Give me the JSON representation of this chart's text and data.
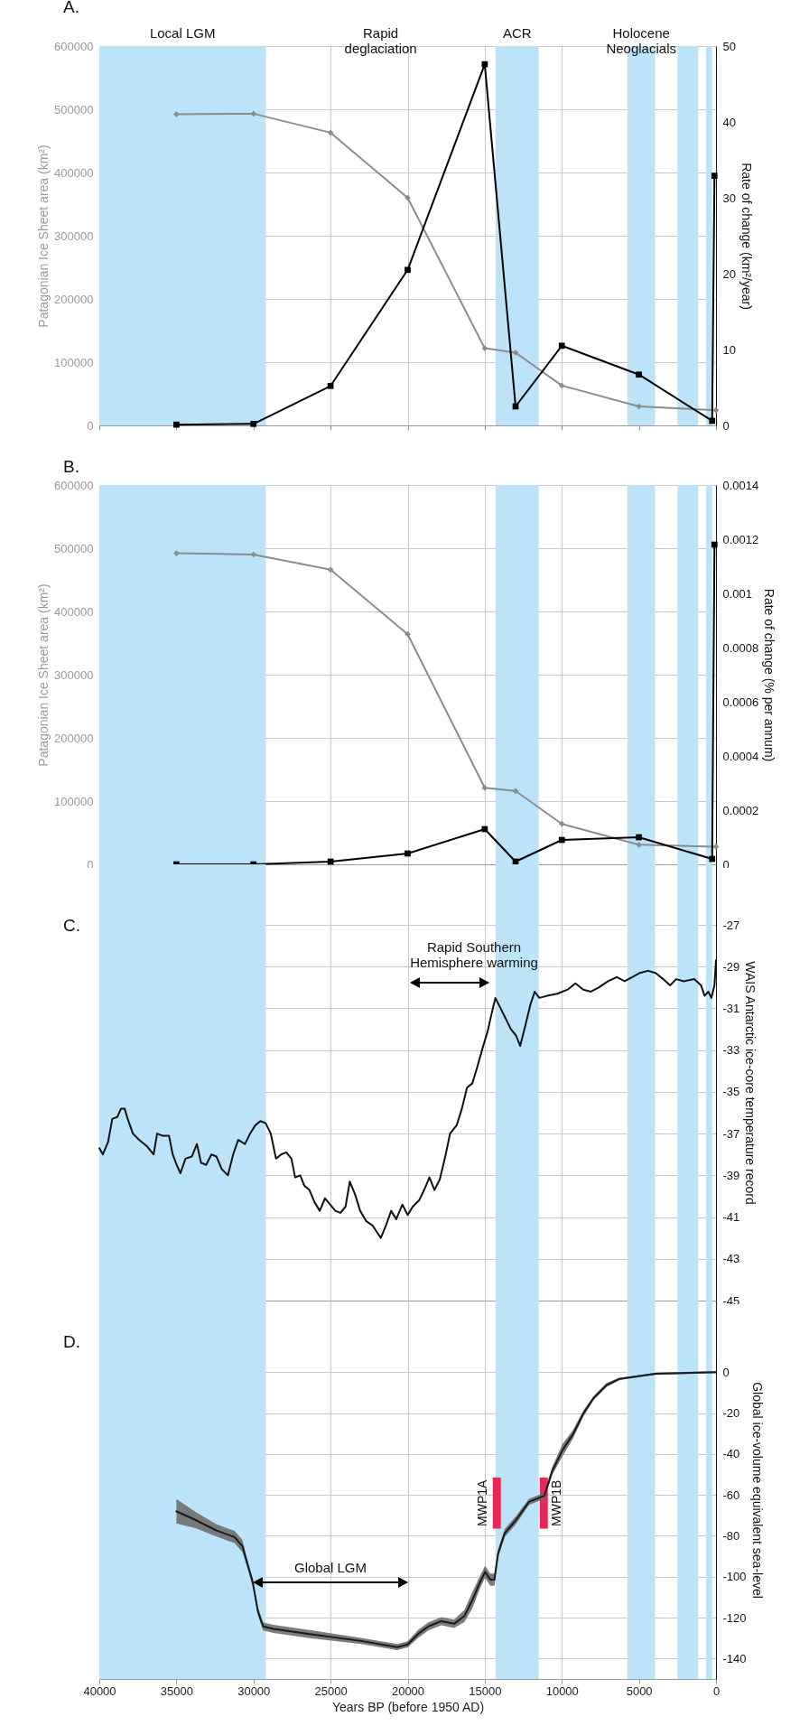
{
  "chart_data": [
    {
      "type": "line",
      "title": "A.",
      "ylabel": "Patagonian Ice Sheet area (km²)",
      "y2label": "Rate of change (km²/year)",
      "annotations": [
        "Rapid deglaciation"
      ],
      "xlim": [
        40000,
        0
      ],
      "xticks": [
        40000,
        35000,
        30000,
        25000,
        20000,
        15000,
        10000,
        5000,
        0
      ],
      "ylim": [
        0,
        600000
      ],
      "yticks": [
        0,
        100000,
        200000,
        300000,
        400000,
        500000,
        600000
      ],
      "y2lim": [
        0,
        50
      ],
      "y2ticks": [
        0,
        10,
        20,
        30,
        40,
        50
      ],
      "grid": true,
      "tick_labels": "y",
      "bands": [
        {
          "axis": "x",
          "from": 40000,
          "to": 29200,
          "label": "Local LGM",
          "color": "#bde3f8"
        },
        {
          "axis": "x",
          "from": 14300,
          "to": 11500,
          "label": "ACR",
          "color": "#bde3f8"
        },
        {
          "axis": "x",
          "from": 5750,
          "to": 3950,
          "label": "Holocene Neoglacials",
          "color": "#bde3f8"
        },
        {
          "axis": "x",
          "from": 2500,
          "to": 1150,
          "color": "#bde3f8"
        },
        {
          "axis": "x",
          "from": 650,
          "to": 250,
          "color": "#bde3f8"
        }
      ],
      "series": [
        {
          "color": "#8c8c8c",
          "marker": "diamond",
          "x": [
            35000,
            30000,
            25000,
            20000,
            15000,
            13000,
            10000,
            5000,
            0
          ],
          "values": [
            492000,
            493000,
            463000,
            360000,
            122000,
            115000,
            63000,
            30000,
            24000
          ]
        },
        {
          "color": "#000000",
          "marker": "square",
          "axis": "y2",
          "x": [
            35000,
            30000,
            25000,
            20000,
            15000,
            13000,
            10000,
            5000,
            250,
            100
          ],
          "values": [
            0.1,
            0.2,
            5.2,
            20.5,
            47.6,
            2.5,
            10.5,
            6.7,
            0.6,
            32.9
          ]
        }
      ]
    },
    {
      "type": "line",
      "title": "B.",
      "ylabel": "Patagonian Ice Sheet area (km²)",
      "y2label": "Rate of change (% per annum)",
      "xlim": [
        40000,
        0
      ],
      "xticks": [
        40000,
        35000,
        30000,
        25000,
        20000,
        15000,
        10000,
        5000,
        0
      ],
      "ylim": [
        0,
        600000
      ],
      "yticks": [
        0,
        100000,
        200000,
        300000,
        400000,
        500000,
        600000
      ],
      "y2lim": [
        0,
        0.0014
      ],
      "y2ticks": [
        0,
        0.0002,
        0.0004,
        0.0006,
        0.0008,
        0.001,
        0.0012,
        0.0014
      ],
      "grid": true,
      "tick_labels": "y",
      "bands": [
        {
          "axis": "x",
          "from": 40000,
          "to": 29200,
          "color": "#bde3f8"
        },
        {
          "axis": "x",
          "from": 14300,
          "to": 11500,
          "color": "#bde3f8"
        },
        {
          "axis": "x",
          "from": 5750,
          "to": 3950,
          "color": "#bde3f8"
        },
        {
          "axis": "x",
          "from": 2500,
          "to": 1150,
          "color": "#bde3f8"
        },
        {
          "axis": "x",
          "from": 650,
          "to": 250,
          "color": "#bde3f8"
        }
      ],
      "series": [
        {
          "color": "#8c8c8c",
          "marker": "diamond",
          "x": [
            35000,
            30000,
            25000,
            20000,
            15000,
            13000,
            10000,
            5000,
            0
          ],
          "values": [
            492000,
            490000,
            466000,
            364000,
            121000,
            116000,
            64000,
            31000,
            28000
          ]
        },
        {
          "color": "#000000",
          "marker": "square",
          "axis": "y2",
          "x": [
            35000,
            30000,
            25000,
            20000,
            15000,
            13000,
            10000,
            5000,
            250,
            100
          ],
          "values": [
            0,
            0,
            1e-05,
            4e-05,
            0.00013,
            1e-05,
            9e-05,
            0.0001,
            2e-05,
            0.00118
          ]
        }
      ]
    },
    {
      "type": "line",
      "title": "C.",
      "y2label": "WAIS Antarctic ice-core temperature record",
      "annotations": [
        "Rapid Southern Hemisphere warming"
      ],
      "xlim": [
        40000,
        0
      ],
      "xticks": [
        40000,
        35000,
        30000,
        25000,
        20000,
        15000,
        10000,
        5000,
        0
      ],
      "y2lim": [
        -45,
        -24.1
      ],
      "y2ticks": [
        -45,
        -43,
        -41,
        -39,
        -37,
        -35,
        -33,
        -31,
        -29,
        -27
      ],
      "grid": true,
      "tick_labels": "y",
      "bands": [
        {
          "axis": "x",
          "from": 40000,
          "to": 29200,
          "color": "#bde3f8"
        },
        {
          "axis": "x",
          "from": 14300,
          "to": 11500,
          "color": "#bde3f8"
        },
        {
          "axis": "x",
          "from": 5750,
          "to": 3950,
          "color": "#bde3f8"
        },
        {
          "axis": "x",
          "from": 2500,
          "to": 1150,
          "color": "#bde3f8"
        },
        {
          "axis": "x",
          "from": 650,
          "to": 250,
          "color": "#bde3f8"
        }
      ],
      "series": [
        {
          "color": "#111111",
          "axis": "y2",
          "x": [
            40000,
            39770,
            39430,
            39160,
            38830,
            38590,
            38360,
            38160,
            37820,
            37420,
            36920,
            36480,
            36250,
            35920,
            35480,
            35240,
            34980,
            34740,
            34410,
            34000,
            33670,
            33400,
            33070,
            32730,
            32400,
            32060,
            31660,
            31320,
            30990,
            30550,
            30220,
            29880,
            29550,
            29210,
            28880,
            28540,
            28210,
            27870,
            27540,
            27300,
            26970,
            26700,
            26370,
            26030,
            25700,
            25360,
            25030,
            24690,
            24360,
            24030,
            23750,
            23420,
            23080,
            22680,
            22280,
            22010,
            21740,
            21410,
            21070,
            20740,
            20340,
            20000,
            19670,
            19260,
            18930,
            18590,
            18260,
            17920,
            17590,
            17250,
            16820,
            16480,
            16150,
            15810,
            15480,
            15140,
            14810,
            14570,
            14310,
            14040,
            13700,
            13300,
            12970,
            12700,
            12360,
            12030,
            11760,
            11460,
            10960,
            10290,
            9620,
            9120,
            8610,
            8110,
            7610,
            7000,
            6430,
            5930,
            5430,
            4930,
            4420,
            3920,
            3420,
            2980,
            2580,
            2080,
            1410,
            970,
            740,
            500,
            300,
            100,
            0
          ],
          "values": [
            -37.7,
            -38,
            -37.4,
            -36.3,
            -36.2,
            -35.8,
            -35.8,
            -36.3,
            -37,
            -37.3,
            -37.6,
            -38,
            -37,
            -37.1,
            -37.1,
            -38,
            -38.5,
            -38.9,
            -38.2,
            -38.1,
            -37.5,
            -38.4,
            -38.5,
            -38,
            -38.1,
            -38.7,
            -39,
            -38,
            -37.3,
            -37.5,
            -37,
            -36.6,
            -36.4,
            -36.5,
            -37,
            -38.2,
            -38,
            -37.9,
            -38.2,
            -39.1,
            -39,
            -39.5,
            -39.7,
            -40.3,
            -40.7,
            -40.1,
            -40.4,
            -40.7,
            -40.8,
            -40.5,
            -39.3,
            -39.9,
            -40.7,
            -41.2,
            -41.4,
            -41.7,
            -42,
            -41.4,
            -40.7,
            -41.1,
            -40.4,
            -40.9,
            -40.5,
            -40.2,
            -39.7,
            -39.1,
            -39.7,
            -39.2,
            -38.2,
            -37,
            -36.6,
            -35.8,
            -34.8,
            -34.6,
            -33.8,
            -32.9,
            -32.1,
            -31.3,
            -30.5,
            -30.9,
            -31.4,
            -32,
            -32.3,
            -32.8,
            -31.8,
            -30.8,
            -30.2,
            -30.5,
            -30.4,
            -30.3,
            -30.1,
            -29.8,
            -30.1,
            -30.2,
            -30,
            -29.7,
            -29.5,
            -29.7,
            -29.5,
            -29.3,
            -29.2,
            -29.3,
            -29.6,
            -29.9,
            -29.6,
            -29.7,
            -29.6,
            -29.9,
            -30.4,
            -30.2,
            -30.5,
            -29.9,
            -28.7
          ]
        }
      ]
    },
    {
      "type": "line",
      "title": "D.",
      "xlabel": "Years BP (before 1950 AD)",
      "y2label": "Global ice-volume equivalent sea-level",
      "annotations": [
        "Global LGM"
      ],
      "xlim": [
        40000,
        0
      ],
      "xticks": [
        40000,
        35000,
        30000,
        25000,
        20000,
        15000,
        10000,
        5000,
        0
      ],
      "y2lim": [
        -150,
        35
      ],
      "y2ticks": [
        -140,
        -120,
        -100,
        -80,
        -60,
        -40,
        -20,
        0
      ],
      "grid": true,
      "bands": [
        {
          "axis": "x",
          "from": 40000,
          "to": 29200,
          "color": "#bde3f8"
        },
        {
          "axis": "x",
          "from": 14300,
          "to": 11500,
          "color": "#bde3f8"
        },
        {
          "axis": "x",
          "from": 5750,
          "to": 3950,
          "color": "#bde3f8"
        },
        {
          "axis": "x",
          "from": 2500,
          "to": 1150,
          "color": "#bde3f8"
        },
        {
          "axis": "x",
          "from": 650,
          "to": 250,
          "color": "#bde3f8"
        }
      ],
      "series": [
        {
          "color": "#1a1a1a",
          "axis": "y2",
          "x": [
            35000,
            33760,
            32400,
            31230,
            30720,
            30390,
            30050,
            29720,
            29380,
            28710,
            26370,
            23020,
            20680,
            20000,
            19330,
            18660,
            17820,
            16990,
            16320,
            15810,
            15310,
            14980,
            14640,
            14370,
            14140,
            13700,
            12970,
            12130,
            11130,
            10620,
            9950,
            9280,
            8610,
            7940,
            7100,
            6270,
            3920,
            0
          ],
          "values": [
            -68,
            -72.3,
            -77.4,
            -80.6,
            -85,
            -93.8,
            -102.7,
            -116.7,
            -124.3,
            -125.5,
            -128,
            -131.4,
            -134.4,
            -133.1,
            -128,
            -124.3,
            -121.7,
            -123,
            -119.2,
            -111.6,
            -102.7,
            -97.6,
            -101.4,
            -101.4,
            -88.8,
            -78.6,
            -72.3,
            -63.4,
            -60.4,
            -48.2,
            -38,
            -30.4,
            -20.3,
            -12.7,
            -6.3,
            -3.3,
            -0.8,
            0
          ],
          "upper": [
            -62,
            -68.3,
            -74.4,
            -77.6,
            -82,
            -91.8,
            -100.7,
            -114.7,
            -122.3,
            -123.5,
            -126,
            -129.9,
            -132.9,
            -131.6,
            -126,
            -122.3,
            -119.7,
            -121,
            -116.2,
            -107.6,
            -99.7,
            -94.6,
            -98.4,
            -98.4,
            -86.8,
            -76.6,
            -70.3,
            -61.9,
            -58.9,
            -46.2,
            -35,
            -28.4,
            -18.8,
            -11.7,
            -5.3,
            -2.8,
            -0.3,
            0.5
          ],
          "lower": [
            -74,
            -76.3,
            -80.4,
            -83.6,
            -88,
            -95.8,
            -104.7,
            -118.7,
            -126.3,
            -127.5,
            -130,
            -132.9,
            -135.9,
            -134.6,
            -130,
            -126.3,
            -123.7,
            -125,
            -122.2,
            -115.6,
            -105.7,
            -100.6,
            -104.4,
            -104.4,
            -90.8,
            -80.6,
            -74.3,
            -64.9,
            -61.9,
            -50.2,
            -41,
            -32.4,
            -21.8,
            -13.7,
            -7.3,
            -3.8,
            -1.3,
            -0.5
          ]
        },
        {
          "name": "MWP1A",
          "type": "bar",
          "color": "#e8285a",
          "axis": "y2",
          "x": [
            14220
          ],
          "base": [
            -76.5
          ],
          "values": [
            25
          ]
        },
        {
          "name": "MWP1B",
          "type": "bar",
          "color": "#e8285a",
          "axis": "y2",
          "x": [
            11170
          ],
          "base": [
            -76.5
          ],
          "values": [
            25
          ]
        }
      ]
    }
  ]
}
